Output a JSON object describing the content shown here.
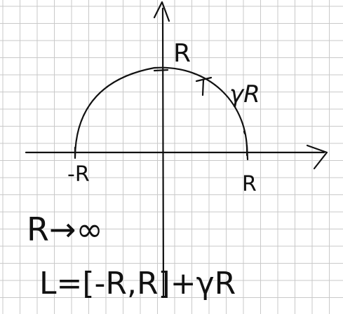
{
  "labels": {
    "top_r": "R",
    "gamma_r": "γR",
    "minus_r": "-R",
    "plus_r": "R",
    "limit": "R→∞",
    "contour": "L=[-R,R]+γR"
  },
  "colors": {
    "ink": "#111111",
    "grid": "#c9c9c9",
    "paper": "#ffffff"
  },
  "icons": {
    "horizontal_axis_arrow": "arrowhead-right",
    "vertical_axis_arrow": "arrowhead-up",
    "tangent_marker": "tangent-T-mark"
  }
}
